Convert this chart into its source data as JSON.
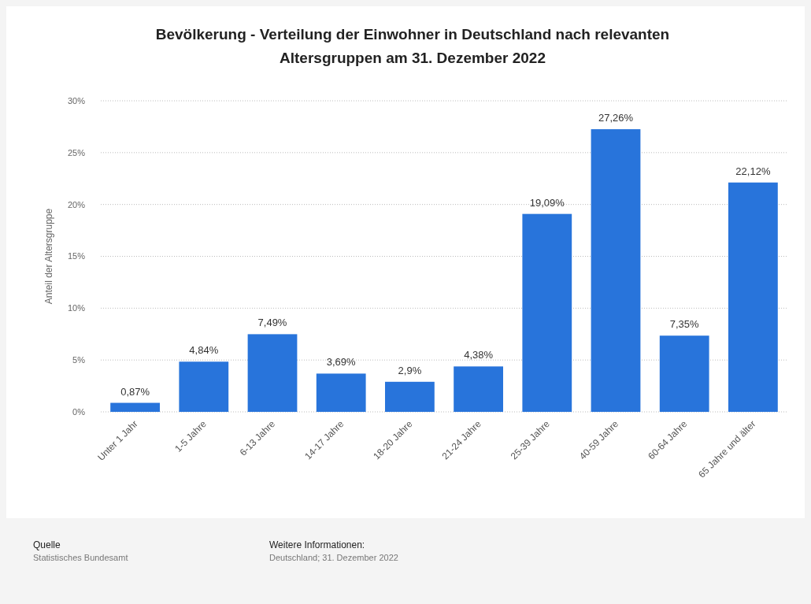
{
  "chart_data": {
    "type": "bar",
    "title": "Bevölkerung - Verteilung der Einwohner in Deutschland nach relevanten Altersgruppen am 31. Dezember 2022",
    "ylabel": "Anteil der Altersgruppe",
    "categories": [
      "Unter 1 Jahr",
      "1-5 Jahre",
      "6-13 Jahre",
      "14-17 Jahre",
      "18-20 Jahre",
      "21-24 Jahre",
      "25-39 Jahre",
      "40-59 Jahre",
      "60-64 Jahre",
      "65 Jahre und älter"
    ],
    "values": [
      0.87,
      4.84,
      7.49,
      3.69,
      2.9,
      4.38,
      19.09,
      27.26,
      7.35,
      22.12
    ],
    "value_labels": [
      "0,87%",
      "4,84%",
      "7,49%",
      "3,69%",
      "2,9%",
      "4,38%",
      "19,09%",
      "27,26%",
      "7,35%",
      "22,12%"
    ],
    "color": "#2874db",
    "ylim": [
      0,
      30
    ],
    "yticks": [
      {
        "value": 0,
        "label": "0%"
      },
      {
        "value": 5,
        "label": "5%"
      },
      {
        "value": 10,
        "label": "10%"
      },
      {
        "value": 15,
        "label": "15%"
      },
      {
        "value": 20,
        "label": "20%"
      },
      {
        "value": 25,
        "label": "25%"
      },
      {
        "value": 30,
        "label": "30%"
      }
    ],
    "grid": "y",
    "annotations": [
      "Quelle",
      "Statistisches Bundesamt",
      "Weitere Informationen:",
      "Deutschland; 31. Dezember 2022"
    ]
  }
}
